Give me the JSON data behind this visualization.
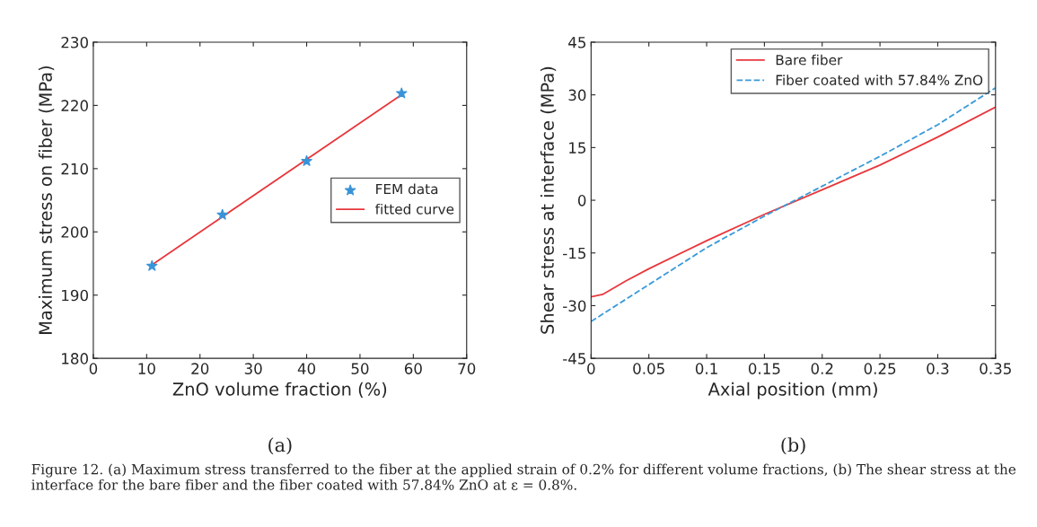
{
  "chart_data": [
    {
      "type": "line",
      "xlabel": "ZnO volume fraction (%)",
      "ylabel": "Maximum stress on fiber (MPa)",
      "series": [
        {
          "name": "FEM data",
          "type": "scatter",
          "marker": "star",
          "color": "#3a94d8",
          "x": [
            11,
            24.2,
            40,
            57.8
          ],
          "values": [
            194.6,
            202.7,
            211.2,
            221.9
          ]
        },
        {
          "name": "fitted curve",
          "color": "#e8383d",
          "x": [
            11,
            57.8
          ],
          "values": [
            194.8,
            221.7
          ]
        }
      ],
      "xlim": [
        0,
        70
      ],
      "xticks": [
        0,
        10,
        20,
        30,
        40,
        50,
        60,
        70
      ],
      "ylim": [
        180,
        230
      ],
      "yticks": [
        180,
        190,
        200,
        210,
        220,
        230
      ],
      "grid": false,
      "legend": "right",
      "annotations": [
        "(a)",
        "Figure 12. (a) Maximum stress transferred to the fiber at the applied strain of 0.2% for different volume fractions, (b) The shear stress at the interface for the bare fiber and the fiber coated with 57.84% ZnO at ε = 0.8%."
      ]
    },
    {
      "type": "line",
      "xlabel": "Axial position (mm)",
      "ylabel": "Shear stress at interface (MPa)",
      "series": [
        {
          "name": "Bare fiber",
          "color": "#e8383d",
          "line_style": "solid",
          "x": [
            0,
            0.01,
            0.03,
            0.05,
            0.1,
            0.15,
            0.2,
            0.25,
            0.3,
            0.35
          ],
          "values": [
            -27.5,
            -26.8,
            -23,
            -19.5,
            -11.5,
            -4,
            3,
            10,
            18,
            26.5
          ]
        },
        {
          "name": "Fiber coated with 57.84% ZnO",
          "color": "#3a9ad9",
          "line_style": "dashed",
          "x": [
            0,
            0.05,
            0.1,
            0.15,
            0.2,
            0.25,
            0.3,
            0.35
          ],
          "values": [
            -34.5,
            -24,
            -13.5,
            -4.5,
            4,
            12.5,
            21.5,
            32
          ]
        }
      ],
      "xlim": [
        0,
        0.35
      ],
      "xticks": [
        0,
        0.05,
        0.1,
        0.15,
        0.2,
        0.25,
        0.3,
        0.35
      ],
      "ylim": [
        -45,
        45
      ],
      "yticks": [
        -45,
        -30,
        -15,
        0,
        15,
        30,
        45
      ],
      "grid": false,
      "legend": "top right",
      "annotations": [
        "(b)"
      ]
    }
  ]
}
